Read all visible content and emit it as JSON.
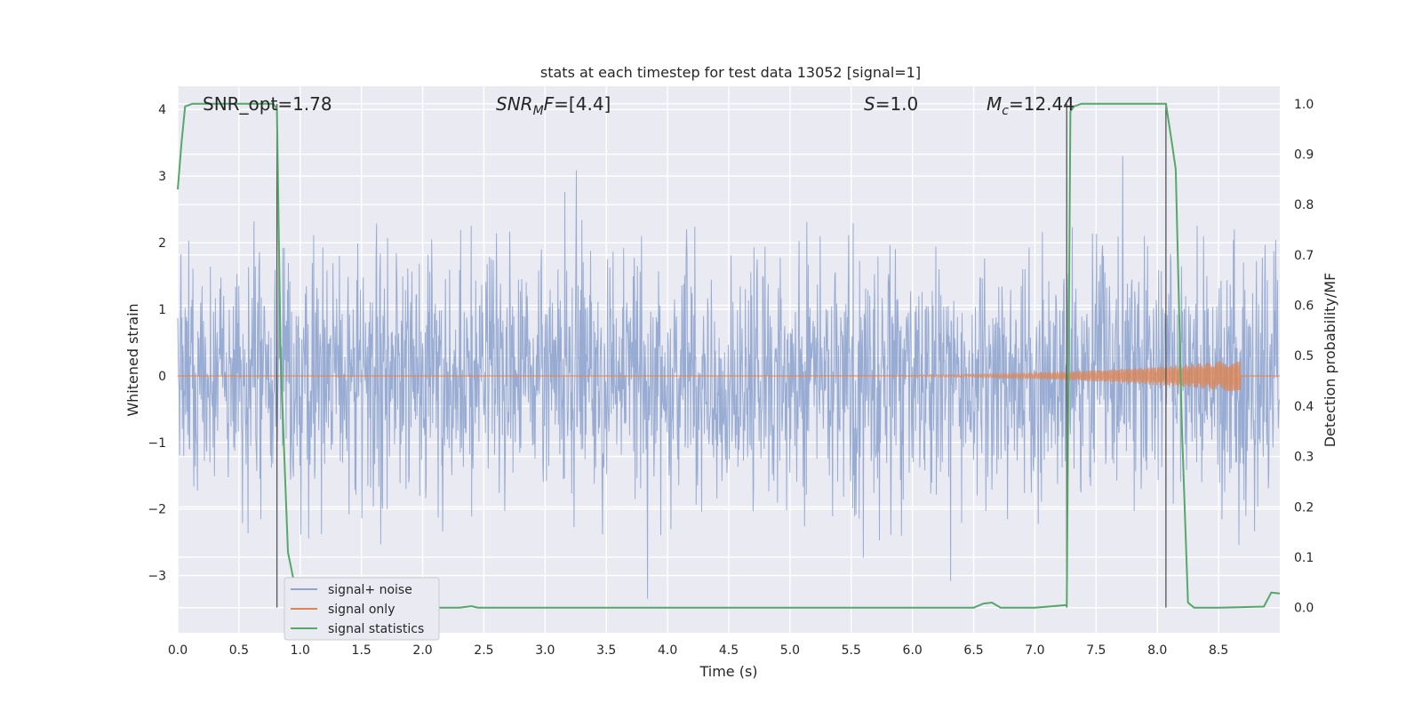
{
  "chart_data": {
    "type": "line",
    "title": "stats at each timestep for test data 13052 [signal=1]",
    "xlabel": "Time (s)",
    "ylabel_left": "Whitened strain",
    "ylabel_right": "Detection probability/MF",
    "xlim": [
      0.0,
      9.0
    ],
    "ylim_left": [
      -3.86,
      4.35
    ],
    "ylim_right": [
      -0.05,
      1.035
    ],
    "x_ticks": [
      "0.0",
      "0.5",
      "1.0",
      "1.5",
      "2.0",
      "2.5",
      "3.0",
      "3.5",
      "4.0",
      "4.5",
      "5.0",
      "5.5",
      "6.0",
      "6.5",
      "7.0",
      "7.5",
      "8.0",
      "8.5"
    ],
    "y_ticks_left": [
      "−3",
      "−2",
      "−1",
      "0",
      "1",
      "2",
      "3",
      "4"
    ],
    "y_ticks_right": [
      "0.0",
      "0.1",
      "0.2",
      "0.3",
      "0.4",
      "0.5",
      "0.6",
      "0.7",
      "0.8",
      "0.9",
      "1.0"
    ],
    "grid": true,
    "legend_position": "lower-left",
    "annotations": {
      "snr_opt": "SNR_opt=1.78",
      "snr_mf_sym": "SNR",
      "snr_mf_sub": "M",
      "snr_mf_rest": "F=[4.4]",
      "s_sym": "S",
      "s_rest": "=1.0",
      "mc_sym": "M",
      "mc_sub": "c",
      "mc_rest": "=12.44"
    },
    "vertical_lines_x": [
      0.81,
      7.26,
      8.07
    ],
    "series": [
      {
        "name": "signal+ noise",
        "color": "#8fa5cf",
        "description_values": {
          "spread_std": 0.9,
          "peak_max": 3.42,
          "peak_min": -3.35
        }
      },
      {
        "name": "signal only",
        "color": "#dd8452",
        "chirp": {
          "start_x": 4.8,
          "end_x": 8.68,
          "end_amplitude": 0.25
        }
      },
      {
        "name": "signal statistics",
        "color": "#55a868",
        "axis": "right",
        "x": [
          0.0,
          0.03,
          0.06,
          0.12,
          0.5,
          0.78,
          0.81,
          0.84,
          0.87,
          0.9,
          0.95,
          1.0,
          1.1,
          1.5,
          2.0,
          2.3,
          2.4,
          2.45,
          3.0,
          4.0,
          5.0,
          6.0,
          6.5,
          6.58,
          6.65,
          6.72,
          7.0,
          7.26,
          7.29,
          7.32,
          7.38,
          7.5,
          7.8,
          8.07,
          8.12,
          8.15,
          8.2,
          8.25,
          8.3,
          8.5,
          8.87,
          8.93,
          9.0
        ],
        "values": [
          0.83,
          0.92,
          0.995,
          1.0,
          1.0,
          1.0,
          0.99,
          0.5,
          0.3,
          0.11,
          0.05,
          0.01,
          0.0,
          0.0,
          0.0,
          0.0,
          0.003,
          0.0,
          0.0,
          0.0,
          0.0,
          0.0,
          0.0,
          0.008,
          0.01,
          0.0,
          0.0,
          0.005,
          0.985,
          0.995,
          1.0,
          1.0,
          1.0,
          1.0,
          0.92,
          0.87,
          0.36,
          0.01,
          0.0,
          0.0,
          0.002,
          0.03,
          0.028
        ]
      }
    ]
  }
}
